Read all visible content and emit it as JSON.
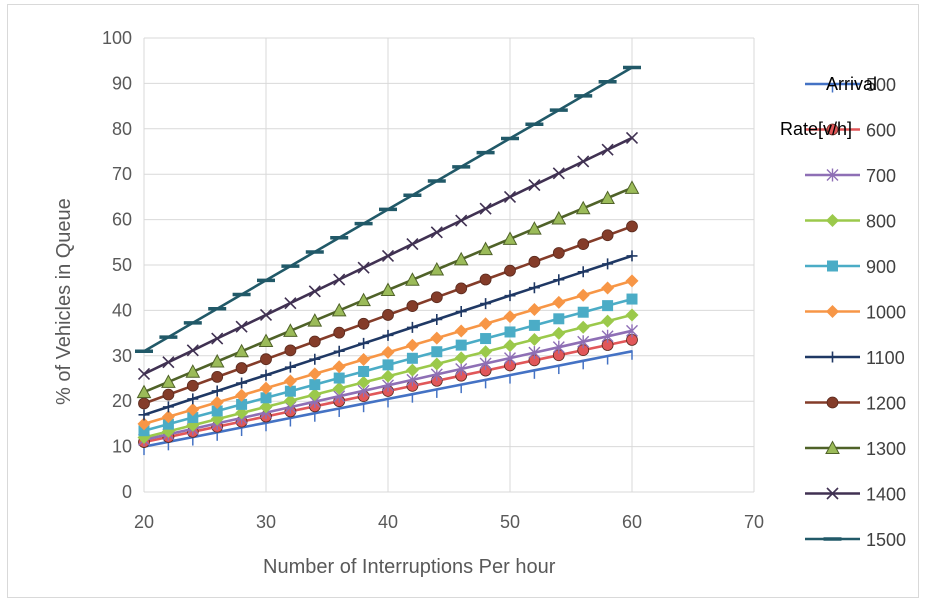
{
  "chart_data": {
    "type": "line",
    "title": "",
    "xlabel": "Number of Interruptions  Per hour",
    "ylabel": "% of Vehicles in Queue",
    "xlim": [
      20,
      70
    ],
    "ylim": [
      0,
      100
    ],
    "xticks": [
      20,
      30,
      40,
      50,
      60,
      70
    ],
    "yticks": [
      0,
      10,
      20,
      30,
      40,
      50,
      60,
      70,
      80,
      90,
      100
    ],
    "grid": "vertical and horizontal major gridlines",
    "legend": {
      "title": "Arrival Rate[v/h]",
      "title_lines": [
        "Arrival",
        "Rate[v/h]"
      ],
      "placement": "right"
    },
    "x": [
      20,
      22,
      24,
      26,
      28,
      30,
      32,
      34,
      36,
      38,
      40,
      42,
      44,
      46,
      48,
      50,
      52,
      54,
      56,
      58,
      60
    ],
    "series": [
      {
        "name": "500",
        "color": "#4472c4",
        "marker": "bar",
        "start": 10,
        "end": 31
      },
      {
        "name": "600",
        "color": "#e15759",
        "marker": "circle",
        "start": 11,
        "end": 33.5
      },
      {
        "name": "700",
        "color": "#8e6fb5",
        "marker": "star",
        "start": 11.5,
        "end": 35.5
      },
      {
        "name": "800",
        "color": "#9bc94b",
        "marker": "diamond",
        "start": 12,
        "end": 39
      },
      {
        "name": "900",
        "color": "#4bacc6",
        "marker": "square",
        "start": 13.5,
        "end": 42.5
      },
      {
        "name": "1000",
        "color": "#f79646",
        "marker": "diamond",
        "start": 15,
        "end": 46.5
      },
      {
        "name": "1100",
        "color": "#1f3864",
        "marker": "plus",
        "start": 17,
        "end": 52
      },
      {
        "name": "1200",
        "color": "#843c29",
        "marker": "circle",
        "start": 19.5,
        "end": 58.5
      },
      {
        "name": "1300",
        "color": "#4f6228",
        "marker": "triangle",
        "start": 22,
        "end": 67
      },
      {
        "name": "1400",
        "color": "#403152",
        "marker": "x",
        "start": 26,
        "end": 78
      },
      {
        "name": "1500",
        "color": "#215968",
        "marker": "dash",
        "start": 31,
        "end": 93.5
      }
    ]
  }
}
